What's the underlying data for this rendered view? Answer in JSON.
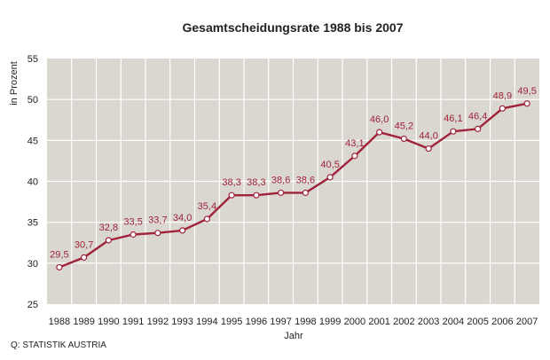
{
  "chart_data": {
    "type": "line",
    "title": "Gesamtscheidungsrate 1988 bis 2007",
    "xlabel": "Jahr",
    "ylabel": "in Prozent",
    "categories": [
      "1988",
      "1989",
      "1990",
      "1991",
      "1992",
      "1993",
      "1994",
      "1995",
      "1996",
      "1997",
      "1998",
      "1999",
      "2000",
      "2001",
      "2002",
      "2003",
      "2004",
      "2005",
      "2006",
      "2007"
    ],
    "values": [
      29.5,
      30.7,
      32.8,
      33.5,
      33.7,
      34.0,
      35.4,
      38.3,
      38.3,
      38.6,
      38.6,
      40.5,
      43.1,
      46.0,
      45.2,
      44.0,
      46.1,
      46.4,
      48.9,
      49.5
    ],
    "value_labels": [
      "29,5",
      "30,7",
      "32,8",
      "33,5",
      "33,7",
      "34,0",
      "35,4",
      "38,3",
      "38,3",
      "38,6",
      "38,6",
      "40,5",
      "43,1",
      "46,0",
      "45,2",
      "44,0",
      "46,1",
      "46,4",
      "48,9",
      "49,5"
    ],
    "ylim": [
      25,
      55
    ],
    "yticks": [
      "25",
      "30",
      "35",
      "40",
      "45",
      "50",
      "55"
    ],
    "grid": true,
    "colors": {
      "line": "#a0233a",
      "plot_bg": "#d9d7d0",
      "grid": "#ffffff",
      "marker_fill": "#ffffff"
    }
  },
  "source": "Q: STATISTIK AUSTRIA"
}
